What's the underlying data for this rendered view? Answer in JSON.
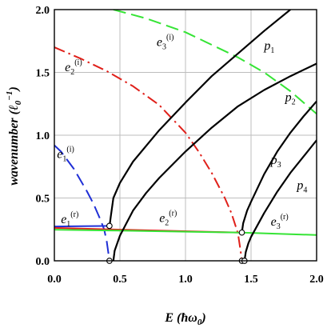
{
  "chart_data": {
    "type": "line",
    "xlabel": "E (ħω0)",
    "ylabel": "wavenumber (ℓ0⁻¹)",
    "xlim": [
      0,
      2
    ],
    "ylim": [
      0,
      2
    ],
    "xticks": [
      "0.0",
      "0.5",
      "1.0",
      "1.5",
      "2.0"
    ],
    "yticks": [
      "0.0",
      "0.5",
      "1.0",
      "1.5",
      "2.0"
    ],
    "grid": true,
    "series": [
      {
        "name": "e1(i)",
        "label_main": "e",
        "label_sub": "1",
        "label_sup": "(i)",
        "color": "#1f2fd6",
        "dash": "long",
        "x": [
          0.0,
          0.05,
          0.1,
          0.15,
          0.2,
          0.25,
          0.3,
          0.35,
          0.38,
          0.4,
          0.42
        ],
        "y": [
          0.92,
          0.87,
          0.8,
          0.73,
          0.64,
          0.55,
          0.45,
          0.33,
          0.25,
          0.15,
          0.0
        ]
      },
      {
        "name": "e2(i)",
        "label_main": "e",
        "label_sub": "2",
        "label_sup": "(i)",
        "color": "#e0201a",
        "dash": "dashdot",
        "x": [
          0.0,
          0.2,
          0.4,
          0.6,
          0.8,
          1.0,
          1.1,
          1.2,
          1.3,
          1.35,
          1.4,
          1.42,
          1.43
        ],
        "y": [
          1.7,
          1.61,
          1.51,
          1.39,
          1.24,
          1.02,
          0.87,
          0.7,
          0.5,
          0.38,
          0.22,
          0.08,
          0.0
        ]
      },
      {
        "name": "e3(i)",
        "label_main": "e",
        "label_sub": "3",
        "label_sup": "(i)",
        "color": "#36e436",
        "dash": "long",
        "x": [
          0.45,
          0.7,
          1.0,
          1.2,
          1.4,
          1.6,
          1.8,
          2.0
        ],
        "y": [
          2.0,
          1.93,
          1.82,
          1.72,
          1.62,
          1.5,
          1.35,
          1.17
        ]
      },
      {
        "name": "e1(r)",
        "label_main": "e",
        "label_sub": "1",
        "label_sup": "(r)",
        "color": "#1f2fd6",
        "dash": "solid",
        "x": [
          0.0,
          0.2,
          0.42
        ],
        "y": [
          0.273,
          0.275,
          0.278
        ]
      },
      {
        "name": "e2(r)",
        "label_main": "e",
        "label_sub": "2",
        "label_sup": "(r)",
        "color": "#e0201a",
        "dash": "solid",
        "x": [
          0.0,
          0.42,
          0.8,
          1.2,
          1.43
        ],
        "y": [
          0.262,
          0.25,
          0.24,
          0.23,
          0.225
        ]
      },
      {
        "name": "e3(r)",
        "label_main": "e",
        "label_sub": "3",
        "label_sup": "(r)",
        "color": "#36e436",
        "dash": "solid",
        "x": [
          0.0,
          0.5,
          1.0,
          1.43,
          2.0
        ],
        "y": [
          0.248,
          0.24,
          0.232,
          0.225,
          0.205
        ]
      },
      {
        "name": "p1",
        "label_main": "p",
        "label_sub": "1",
        "label_sup": "",
        "color": "#000000",
        "dash": "solid",
        "x": [
          0.42,
          0.43,
          0.45,
          0.5,
          0.6,
          0.8,
          1.0,
          1.2,
          1.4,
          1.6,
          1.8
        ],
        "y": [
          0.27,
          0.35,
          0.5,
          0.62,
          0.79,
          1.04,
          1.26,
          1.47,
          1.65,
          1.83,
          2.0
        ]
      },
      {
        "name": "p2",
        "label_main": "p",
        "label_sub": "2",
        "label_sup": "",
        "color": "#000000",
        "dash": "solid",
        "x": [
          0.45,
          0.46,
          0.5,
          0.6,
          0.7,
          0.8,
          1.0,
          1.2,
          1.4,
          1.6,
          1.8,
          2.0
        ],
        "y": [
          0.0,
          0.08,
          0.2,
          0.4,
          0.54,
          0.66,
          0.87,
          1.06,
          1.23,
          1.36,
          1.47,
          1.57
        ]
      },
      {
        "name": "p3",
        "label_main": "p",
        "label_sub": "3",
        "label_sup": "",
        "color": "#000000",
        "dash": "solid",
        "x": [
          1.43,
          1.44,
          1.47,
          1.5,
          1.6,
          1.7,
          1.8,
          1.9,
          2.0
        ],
        "y": [
          0.225,
          0.3,
          0.4,
          0.47,
          0.69,
          0.87,
          1.02,
          1.15,
          1.27
        ]
      },
      {
        "name": "p4",
        "label_main": "p",
        "label_sub": "4",
        "label_sup": "",
        "color": "#000000",
        "dash": "solid",
        "x": [
          1.45,
          1.46,
          1.48,
          1.5,
          1.6,
          1.7,
          1.8,
          1.9,
          2.0
        ],
        "y": [
          0.0,
          0.07,
          0.14,
          0.19,
          0.38,
          0.55,
          0.7,
          0.83,
          0.96
        ]
      }
    ],
    "markers": [
      {
        "x": 0.42,
        "y": 0.278
      },
      {
        "x": 0.42,
        "y": 0.0
      },
      {
        "x": 1.43,
        "y": 0.225
      },
      {
        "x": 1.43,
        "y": 0.0
      },
      {
        "x": 1.45,
        "y": 0.0
      }
    ],
    "label_anchors": {
      "e1(i)": [
        0.02,
        0.82
      ],
      "e2(i)": [
        0.08,
        1.51
      ],
      "e3(i)": [
        0.78,
        1.71
      ],
      "e1(r)": [
        0.05,
        0.3
      ],
      "e2(r)": [
        0.8,
        0.31
      ],
      "e3(r)": [
        1.65,
        0.28
      ],
      "p1": [
        1.6,
        1.68
      ],
      "p2": [
        1.76,
        1.27
      ],
      "p3": [
        1.65,
        0.77
      ],
      "p4": [
        1.85,
        0.57
      ]
    }
  }
}
